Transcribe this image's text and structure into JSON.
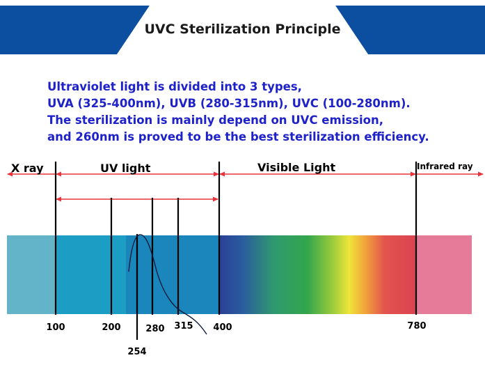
{
  "title": "UVC Sterilization Principle",
  "intro_lines": [
    "Ultraviolet light is divided into 3 types,",
    "UVA (325-400nm), UVB (280-315nm), UVC (100-280nm).",
    "The sterilization is mainly depend on UVC emission,",
    "and 260nm is proved to be the best sterilization efficiency."
  ],
  "regions": {
    "x_ray": "X ray",
    "uv_light": "UV light",
    "visible_light": "Visible Light",
    "infrared": "Infrared ray"
  },
  "ticks": {
    "t100": "100",
    "t200": "200",
    "t254": "254",
    "t280": "280",
    "t315": "315",
    "t400": "400",
    "t780": "780"
  },
  "colors": {
    "header_blue": "#0c4fa0",
    "intro_text": "#1e22c8",
    "arrow_red": "#e8343a",
    "xray_band": "#63b3c9",
    "uv_band": "#1c9ec4",
    "uvc_band": "#1a86bb",
    "infrared_band": "#e57a99"
  }
}
